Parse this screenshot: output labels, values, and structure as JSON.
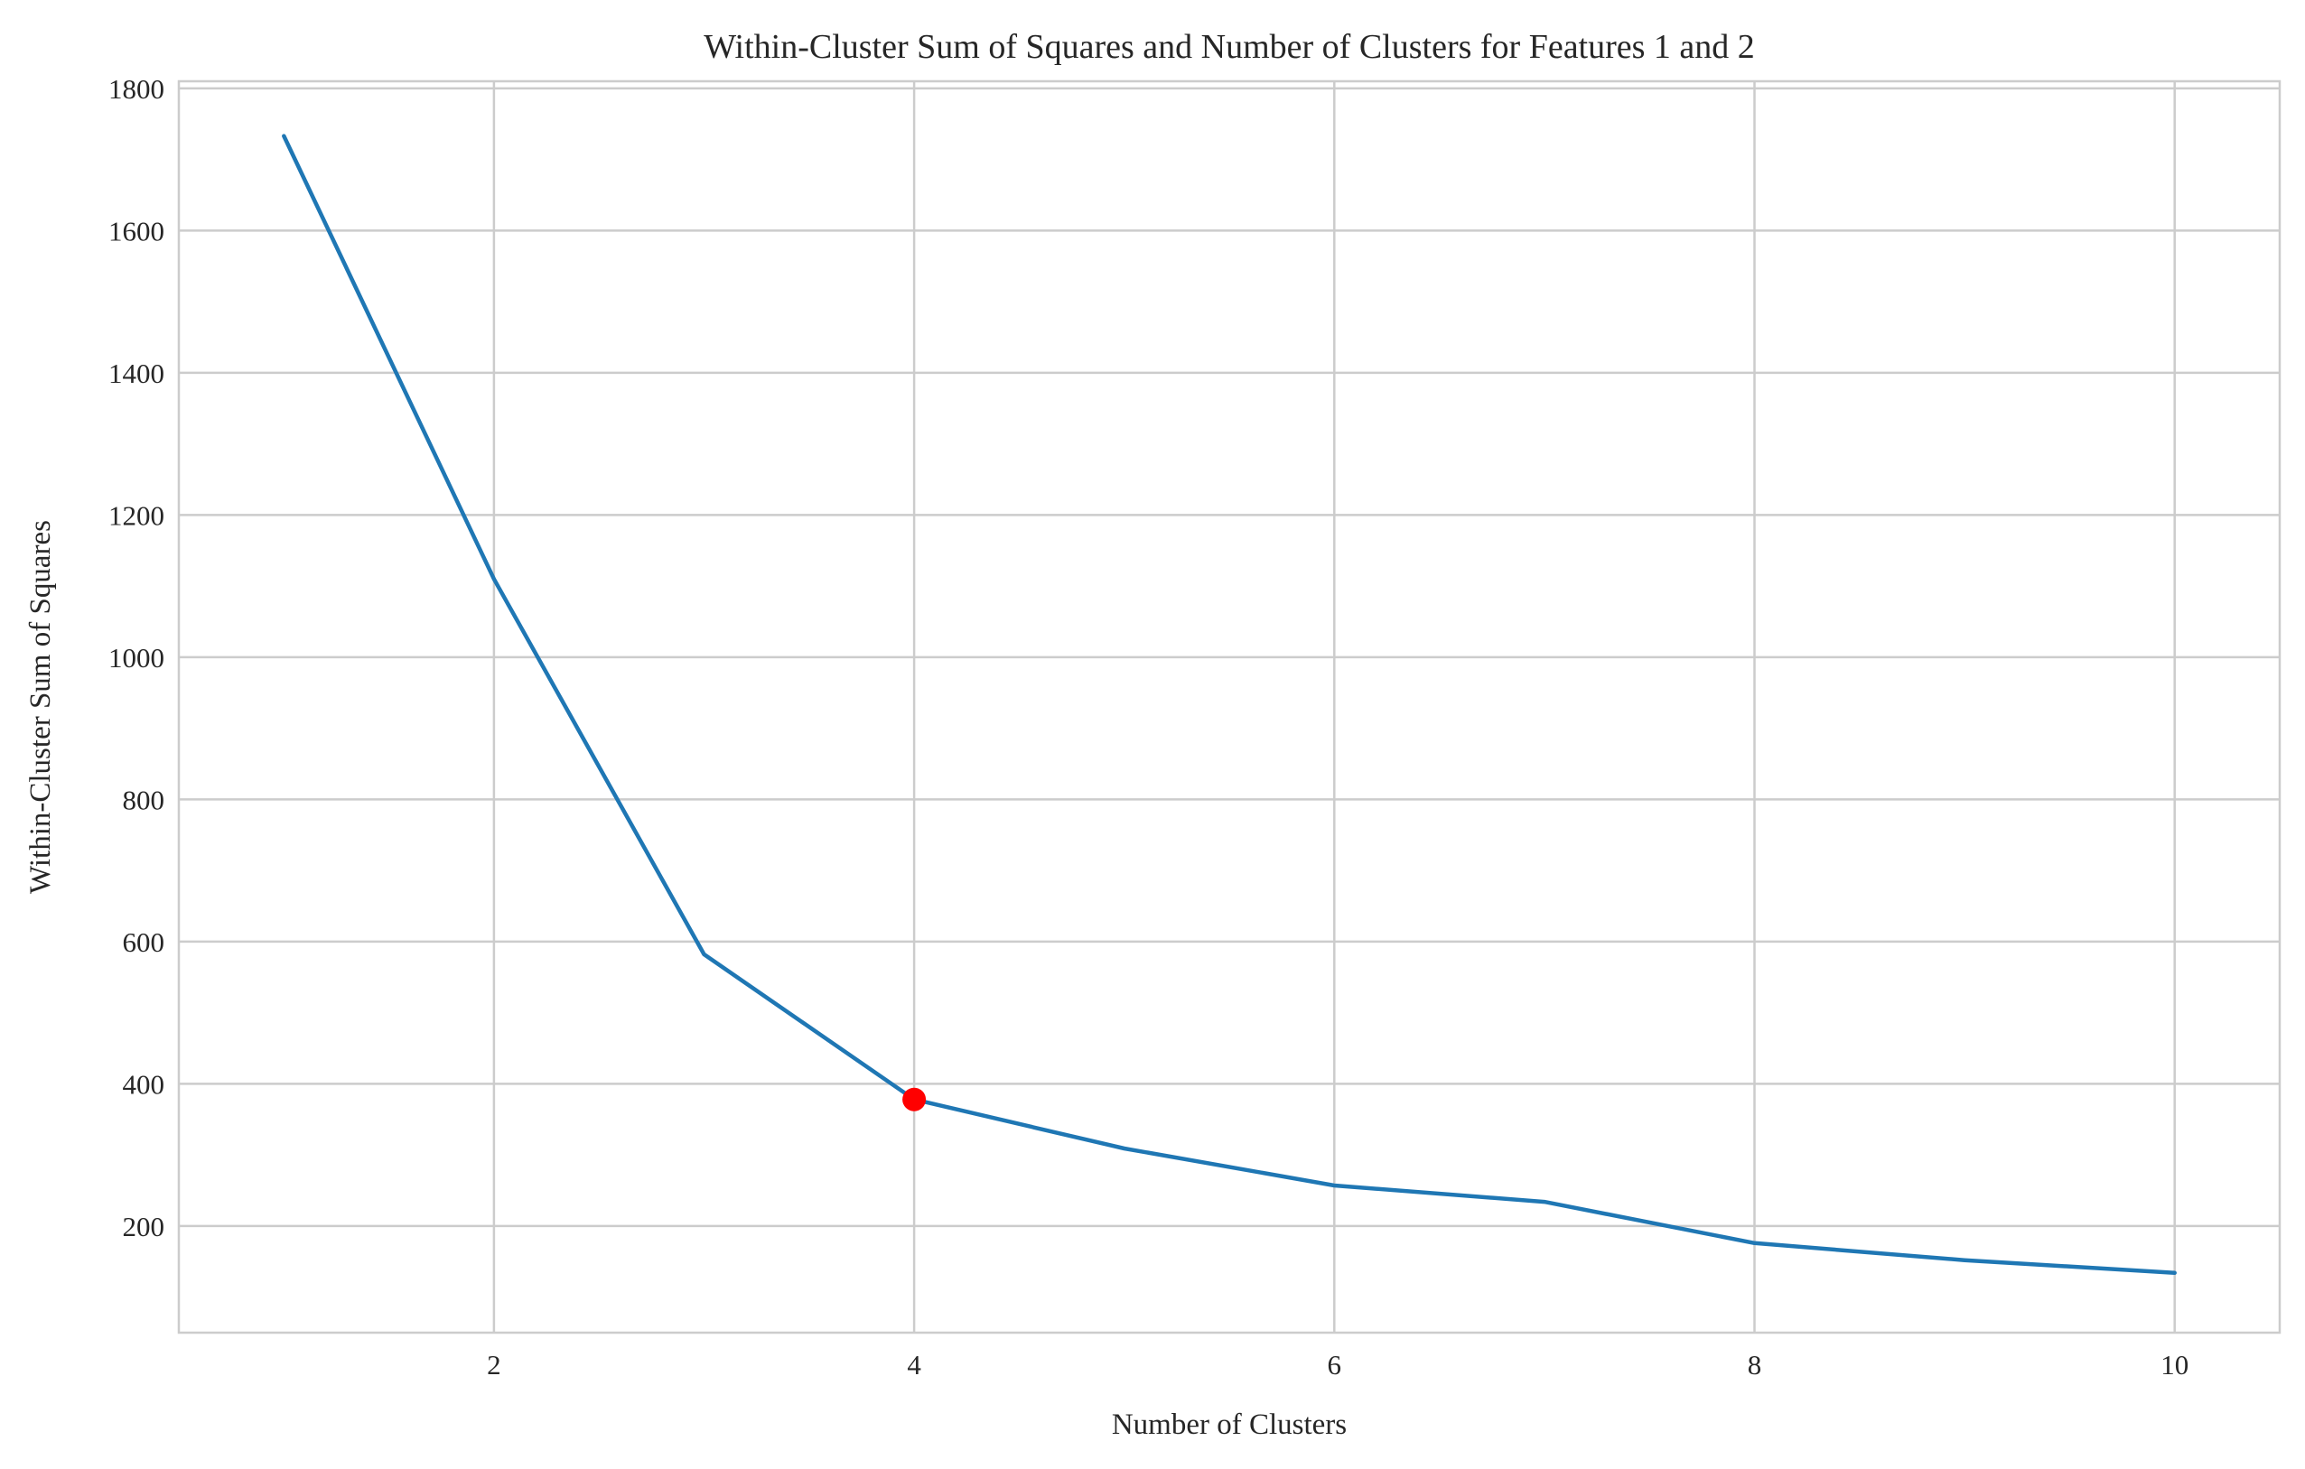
{
  "chart_data": {
    "type": "line",
    "title": "Within-Cluster Sum of Squares and Number of Clusters for Features 1 and 2",
    "xlabel": "Number of Clusters",
    "ylabel": "Within-Cluster Sum of Squares",
    "xlim": [
      0.5,
      10.5
    ],
    "ylim": [
      50,
      1810
    ],
    "xticks": [
      2,
      4,
      6,
      8,
      10
    ],
    "yticks": [
      200,
      400,
      600,
      800,
      1000,
      1200,
      1400,
      1600,
      1800
    ],
    "grid": true,
    "series": [
      {
        "x": [
          1,
          2,
          3,
          4,
          5,
          6,
          7,
          8,
          9,
          10
        ],
        "y": [
          1733,
          1110,
          582,
          378,
          309,
          257,
          234,
          176,
          152,
          134
        ],
        "color": "#1f77b4"
      }
    ],
    "highlight": {
      "x": 4,
      "y": 378,
      "color": "#ff0000"
    }
  }
}
